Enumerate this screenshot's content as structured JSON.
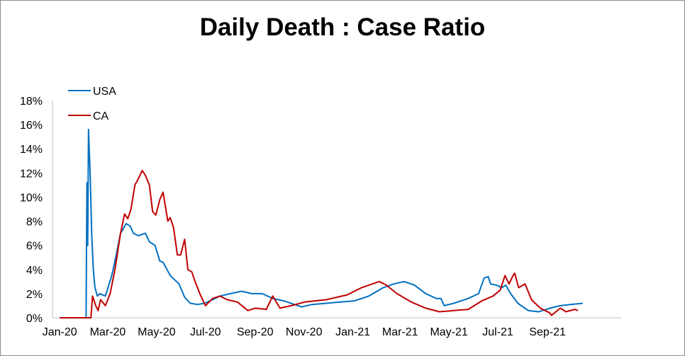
{
  "chart_data": {
    "type": "line",
    "title": "Daily Death : Case Ratio",
    "xlabel": "",
    "ylabel": "",
    "x_unit": "days since 2020-01-01",
    "xlim": [
      -9,
      701
    ],
    "ylim": [
      0,
      18
    ],
    "grid": false,
    "legend_position": "top-left",
    "y_ticks": [
      {
        "value": 0,
        "label": "0%"
      },
      {
        "value": 2,
        "label": "2%"
      },
      {
        "value": 4,
        "label": "4%"
      },
      {
        "value": 6,
        "label": "6%"
      },
      {
        "value": 8,
        "label": "8%"
      },
      {
        "value": 10,
        "label": "10%"
      },
      {
        "value": 12,
        "label": "12%"
      },
      {
        "value": 14,
        "label": "14%"
      },
      {
        "value": 16,
        "label": "16%"
      },
      {
        "value": 18,
        "label": "18%"
      }
    ],
    "x_ticks": [
      {
        "value": 0,
        "label": "Jan-20"
      },
      {
        "value": 60,
        "label": "Mar-20"
      },
      {
        "value": 121,
        "label": "May-20"
      },
      {
        "value": 182,
        "label": "Jul-20"
      },
      {
        "value": 244,
        "label": "Sep-20"
      },
      {
        "value": 305,
        "label": "Nov-20"
      },
      {
        "value": 366,
        "label": "Jan-21"
      },
      {
        "value": 425,
        "label": "Mar-21"
      },
      {
        "value": 486,
        "label": "May-21"
      },
      {
        "value": 547,
        "label": "Jul-21"
      },
      {
        "value": 609,
        "label": "Sep-21"
      }
    ],
    "series": [
      {
        "name": "USA",
        "color": "#0070c0",
        "points": [
          [
            0,
            0
          ],
          [
            33,
            0
          ],
          [
            34,
            11.2
          ],
          [
            35,
            6
          ],
          [
            36,
            15.6
          ],
          [
            38,
            12
          ],
          [
            40,
            7
          ],
          [
            42,
            4
          ],
          [
            44,
            2.5
          ],
          [
            47,
            1.8
          ],
          [
            50,
            2
          ],
          [
            57,
            1.8
          ],
          [
            58,
            2
          ],
          [
            65,
            3.5
          ],
          [
            70,
            5
          ],
          [
            76,
            7
          ],
          [
            83,
            7.8
          ],
          [
            88,
            7.6
          ],
          [
            92,
            7
          ],
          [
            98,
            6.8
          ],
          [
            107,
            7
          ],
          [
            112,
            6.3
          ],
          [
            119,
            6
          ],
          [
            125,
            4.7
          ],
          [
            129,
            4.6
          ],
          [
            138,
            3.5
          ],
          [
            149,
            2.8
          ],
          [
            156,
            1.7
          ],
          [
            163,
            1.2
          ],
          [
            172,
            1.1
          ],
          [
            181,
            1.2
          ],
          [
            191,
            1.5
          ],
          [
            200,
            1.8
          ],
          [
            213,
            2.0
          ],
          [
            227,
            2.2
          ],
          [
            240,
            2.0
          ],
          [
            253,
            2.0
          ],
          [
            266,
            1.6
          ],
          [
            280,
            1.4
          ],
          [
            293,
            1.1
          ],
          [
            302,
            0.9
          ],
          [
            315,
            1.1
          ],
          [
            333,
            1.2
          ],
          [
            350,
            1.3
          ],
          [
            368,
            1.4
          ],
          [
            386,
            1.8
          ],
          [
            404,
            2.5
          ],
          [
            417,
            2.8
          ],
          [
            430,
            3.0
          ],
          [
            443,
            2.7
          ],
          [
            457,
            2.0
          ],
          [
            470,
            1.6
          ],
          [
            476,
            1.6
          ],
          [
            480,
            1.0
          ],
          [
            492,
            1.2
          ],
          [
            510,
            1.6
          ],
          [
            523,
            2.0
          ],
          [
            530,
            3.3
          ],
          [
            535,
            3.4
          ],
          [
            538,
            2.8
          ],
          [
            545,
            2.7
          ],
          [
            552,
            2.5
          ],
          [
            557,
            2.7
          ],
          [
            563,
            2.0
          ],
          [
            572,
            1.2
          ],
          [
            585,
            0.6
          ],
          [
            598,
            0.5
          ],
          [
            612,
            0.8
          ],
          [
            625,
            1.0
          ],
          [
            638,
            1.1
          ],
          [
            653,
            1.2
          ]
        ]
      },
      {
        "name": "CA",
        "color": "#c00000",
        "points": [
          [
            0,
            0
          ],
          [
            39,
            0
          ],
          [
            41,
            1.8
          ],
          [
            45,
            1
          ],
          [
            48,
            0.6
          ],
          [
            51,
            1.5
          ],
          [
            57,
            1.0
          ],
          [
            63,
            2
          ],
          [
            69,
            4
          ],
          [
            76,
            7
          ],
          [
            81,
            8.6
          ],
          [
            85,
            8.2
          ],
          [
            89,
            9
          ],
          [
            94,
            11
          ],
          [
            98,
            11.5
          ],
          [
            103,
            12.2
          ],
          [
            107,
            11.8
          ],
          [
            112,
            11
          ],
          [
            116,
            8.8
          ],
          [
            120,
            8.5
          ],
          [
            125,
            9.8
          ],
          [
            129,
            10.4
          ],
          [
            135,
            8
          ],
          [
            138,
            8.3
          ],
          [
            142,
            7.5
          ],
          [
            147,
            5.2
          ],
          [
            151,
            5.2
          ],
          [
            156,
            6.5
          ],
          [
            160,
            4
          ],
          [
            165,
            3.8
          ],
          [
            169,
            3
          ],
          [
            175,
            2
          ],
          [
            182,
            1
          ],
          [
            191,
            1.6
          ],
          [
            200,
            1.8
          ],
          [
            209,
            1.5
          ],
          [
            222,
            1.3
          ],
          [
            235,
            0.6
          ],
          [
            244,
            0.8
          ],
          [
            258,
            0.7
          ],
          [
            266,
            1.8
          ],
          [
            275,
            0.8
          ],
          [
            289,
            1.0
          ],
          [
            306,
            1.3
          ],
          [
            333,
            1.5
          ],
          [
            359,
            1.9
          ],
          [
            377,
            2.5
          ],
          [
            399,
            3.0
          ],
          [
            408,
            2.7
          ],
          [
            421,
            2.0
          ],
          [
            439,
            1.3
          ],
          [
            457,
            0.8
          ],
          [
            474,
            0.5
          ],
          [
            492,
            0.6
          ],
          [
            510,
            0.7
          ],
          [
            527,
            1.4
          ],
          [
            541,
            1.8
          ],
          [
            550,
            2.3
          ],
          [
            556,
            3.5
          ],
          [
            561,
            2.8
          ],
          [
            566,
            3.5
          ],
          [
            568,
            3.7
          ],
          [
            573,
            2.5
          ],
          [
            581,
            2.8
          ],
          [
            589,
            1.5
          ],
          [
            600,
            0.8
          ],
          [
            612,
            0.4
          ],
          [
            614,
            0.2
          ],
          [
            625,
            0.8
          ],
          [
            632,
            0.5
          ],
          [
            643,
            0.7
          ],
          [
            647,
            0.6
          ]
        ]
      }
    ]
  }
}
